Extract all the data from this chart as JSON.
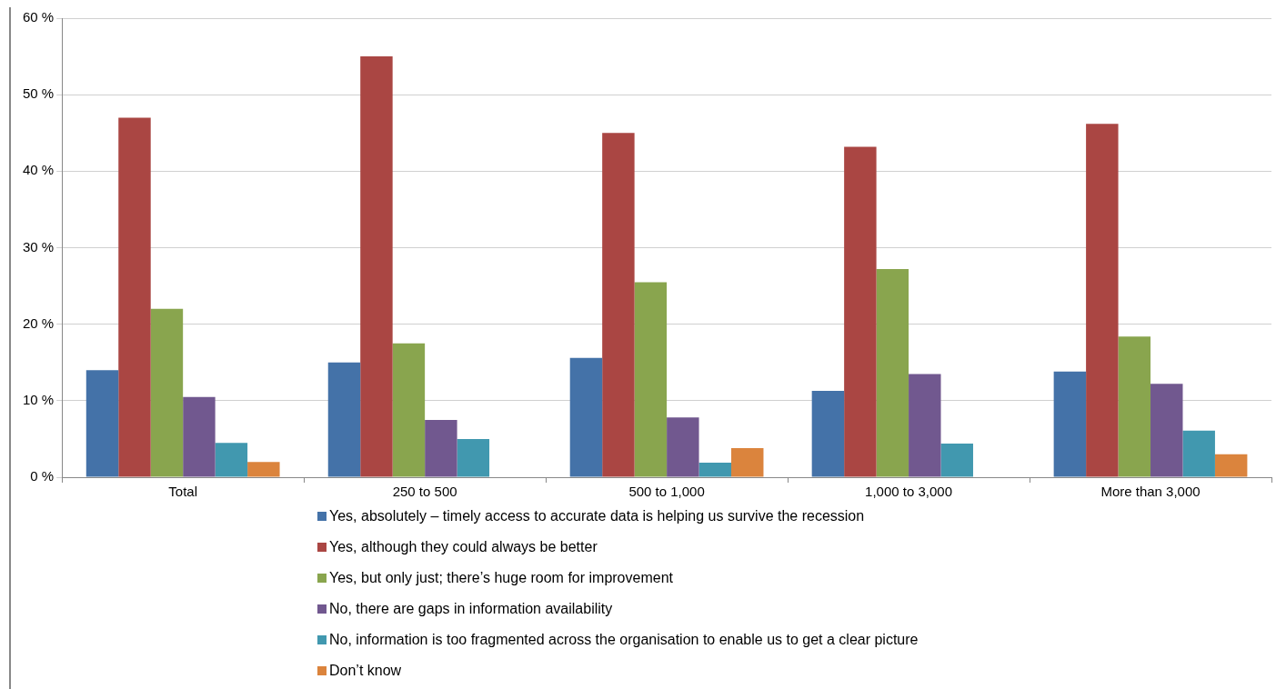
{
  "chart_data": {
    "type": "bar",
    "categories": [
      "Total",
      "250 to 500",
      "500 to 1,000",
      "1,000 to 3,000",
      "More than 3,000"
    ],
    "series": [
      {
        "name": "Yes, absolutely – timely access to accurate data is helping us survive the recession",
        "color": "#4472a8",
        "values": [
          14,
          15,
          15.6,
          11.3,
          13.8
        ]
      },
      {
        "name": "Yes, although they could always be better",
        "color": "#aa4643",
        "values": [
          47,
          55,
          45,
          43.2,
          46.2
        ]
      },
      {
        "name": "Yes, but only just; there’s huge room for improvement",
        "color": "#89a54e",
        "values": [
          22,
          17.5,
          25.5,
          27.2,
          18.4
        ]
      },
      {
        "name": "No, there are gaps in information availability",
        "color": "#71588f",
        "values": [
          10.5,
          7.5,
          7.8,
          13.5,
          12.2
        ]
      },
      {
        "name": "No, information is too fragmented across the organisation to enable us to get a clear picture",
        "color": "#4198af",
        "values": [
          4.5,
          5,
          1.9,
          4.4,
          6.1
        ]
      },
      {
        "name": "Don’t know",
        "color": "#db843d",
        "values": [
          2,
          0,
          3.8,
          0,
          3
        ]
      }
    ],
    "ylim": [
      0,
      60
    ],
    "yticks": [
      {
        "value": 0,
        "label": "0 %"
      },
      {
        "value": 10,
        "label": "10 %"
      },
      {
        "value": 20,
        "label": "20 %"
      },
      {
        "value": 30,
        "label": "30 %"
      },
      {
        "value": 40,
        "label": "40 %"
      },
      {
        "value": 50,
        "label": "50 %"
      },
      {
        "value": 60,
        "label": "60 %"
      }
    ],
    "grid": "y",
    "legend": "bottom"
  }
}
